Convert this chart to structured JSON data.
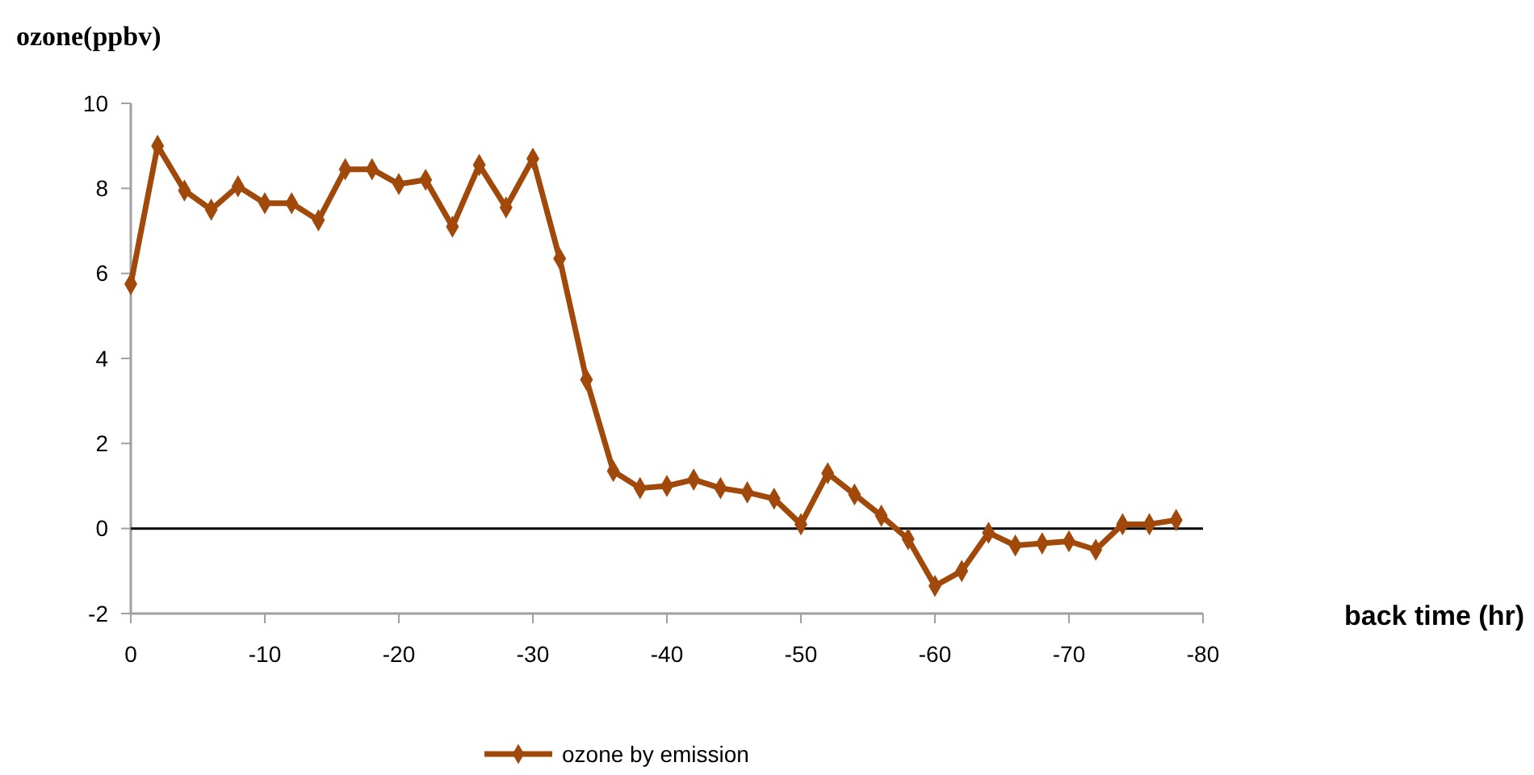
{
  "chart_data": {
    "type": "line",
    "xlabel": "back time (hr)",
    "ylabel": "ozone(ppbv)",
    "x": [
      0,
      -2,
      -4,
      -6,
      -8,
      -10,
      -12,
      -14,
      -16,
      -18,
      -20,
      -22,
      -24,
      -26,
      -28,
      -30,
      -32,
      -34,
      -36,
      -38,
      -40,
      -42,
      -44,
      -46,
      -48,
      -50,
      -52,
      -54,
      -56,
      -58,
      -60,
      -62,
      -64,
      -66,
      -68,
      -70,
      -72,
      -74,
      -76,
      -78
    ],
    "series": [
      {
        "name": "ozone by emission",
        "color": "#a0490a",
        "values": [
          5.75,
          9.0,
          7.95,
          7.5,
          8.05,
          7.65,
          7.65,
          7.25,
          8.45,
          8.45,
          8.1,
          8.2,
          7.1,
          8.55,
          7.55,
          8.7,
          6.35,
          3.5,
          1.35,
          0.95,
          1.0,
          1.15,
          0.95,
          0.85,
          0.7,
          0.1,
          1.3,
          0.8,
          0.3,
          -0.25,
          -1.35,
          -1.0,
          -0.1,
          -0.4,
          -0.35,
          -0.3,
          -0.5,
          0.1,
          0.1,
          0.2
        ]
      }
    ],
    "xlim": [
      0,
      -80
    ],
    "xticks": [
      0,
      -10,
      -20,
      -30,
      -40,
      -50,
      -60,
      -70,
      -80
    ],
    "ylim": [
      -2,
      10
    ],
    "yticks": [
      -2,
      0,
      2,
      4,
      6,
      8,
      10
    ],
    "ref_lines": [
      {
        "axis": "y",
        "value": 0,
        "color": "#000000"
      }
    ],
    "grid": false,
    "legend": "bottom",
    "marker": "diamond",
    "line_style": "solid"
  }
}
